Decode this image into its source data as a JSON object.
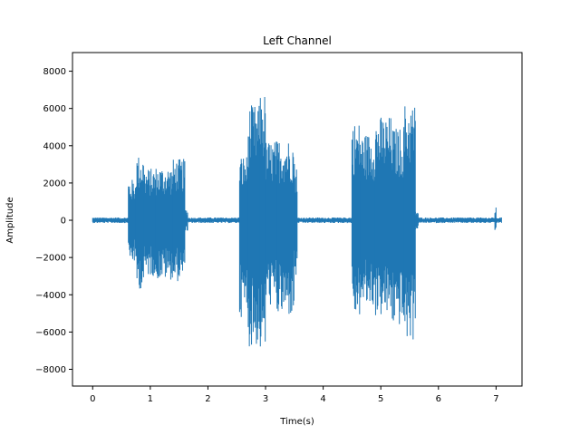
{
  "chart_data": {
    "type": "line",
    "title": "Left Channel",
    "xlabel": "Time(s)",
    "ylabel": "Amplitude",
    "xlim": [
      -0.35,
      7.45
    ],
    "ylim": [
      -8900,
      9000
    ],
    "xticks": [
      0,
      1,
      2,
      3,
      4,
      5,
      6,
      7
    ],
    "yticks": [
      -8000,
      -6000,
      -4000,
      -2000,
      0,
      2000,
      4000,
      6000,
      8000
    ],
    "grid": false,
    "series": [
      {
        "name": "",
        "color": "#1f77b4",
        "segments": [
          {
            "x_start": 0.0,
            "x_end": 0.62,
            "upper": 150,
            "lower": -150
          },
          {
            "x_start": 0.62,
            "x_end": 0.75,
            "upper": 2200,
            "lower": -2300
          },
          {
            "x_start": 0.75,
            "x_end": 0.9,
            "upper": 3500,
            "lower": -3700
          },
          {
            "x_start": 0.9,
            "x_end": 1.1,
            "upper": 2800,
            "lower": -3000
          },
          {
            "x_start": 1.1,
            "x_end": 1.4,
            "upper": 2900,
            "lower": -3200
          },
          {
            "x_start": 1.4,
            "x_end": 1.6,
            "upper": 3300,
            "lower": -3300
          },
          {
            "x_start": 1.6,
            "x_end": 1.65,
            "upper": 600,
            "lower": -600
          },
          {
            "x_start": 1.65,
            "x_end": 2.55,
            "upper": 150,
            "lower": -150
          },
          {
            "x_start": 2.55,
            "x_end": 2.7,
            "upper": 3500,
            "lower": -5200
          },
          {
            "x_start": 2.7,
            "x_end": 2.9,
            "upper": 6200,
            "lower": -6800
          },
          {
            "x_start": 2.9,
            "x_end": 3.0,
            "upper": 6900,
            "lower": -7100
          },
          {
            "x_start": 3.0,
            "x_end": 3.2,
            "upper": 4300,
            "lower": -4600
          },
          {
            "x_start": 3.2,
            "x_end": 3.5,
            "upper": 4400,
            "lower": -5200
          },
          {
            "x_start": 3.5,
            "x_end": 3.55,
            "upper": 3200,
            "lower": -3200
          },
          {
            "x_start": 3.55,
            "x_end": 4.5,
            "upper": 150,
            "lower": -150
          },
          {
            "x_start": 4.5,
            "x_end": 4.65,
            "upper": 5300,
            "lower": -5200
          },
          {
            "x_start": 4.65,
            "x_end": 4.9,
            "upper": 4700,
            "lower": -4700
          },
          {
            "x_start": 4.9,
            "x_end": 5.2,
            "upper": 5600,
            "lower": -5200
          },
          {
            "x_start": 5.2,
            "x_end": 5.4,
            "upper": 5000,
            "lower": -5700
          },
          {
            "x_start": 5.4,
            "x_end": 5.6,
            "upper": 6300,
            "lower": -6500
          },
          {
            "x_start": 5.6,
            "x_end": 5.65,
            "upper": 500,
            "lower": -500
          },
          {
            "x_start": 5.65,
            "x_end": 6.98,
            "upper": 150,
            "lower": -150
          },
          {
            "x_start": 6.98,
            "x_end": 7.0,
            "upper": 700,
            "lower": -600
          },
          {
            "x_start": 7.0,
            "x_end": 7.1,
            "upper": 150,
            "lower": -150
          }
        ]
      }
    ]
  }
}
